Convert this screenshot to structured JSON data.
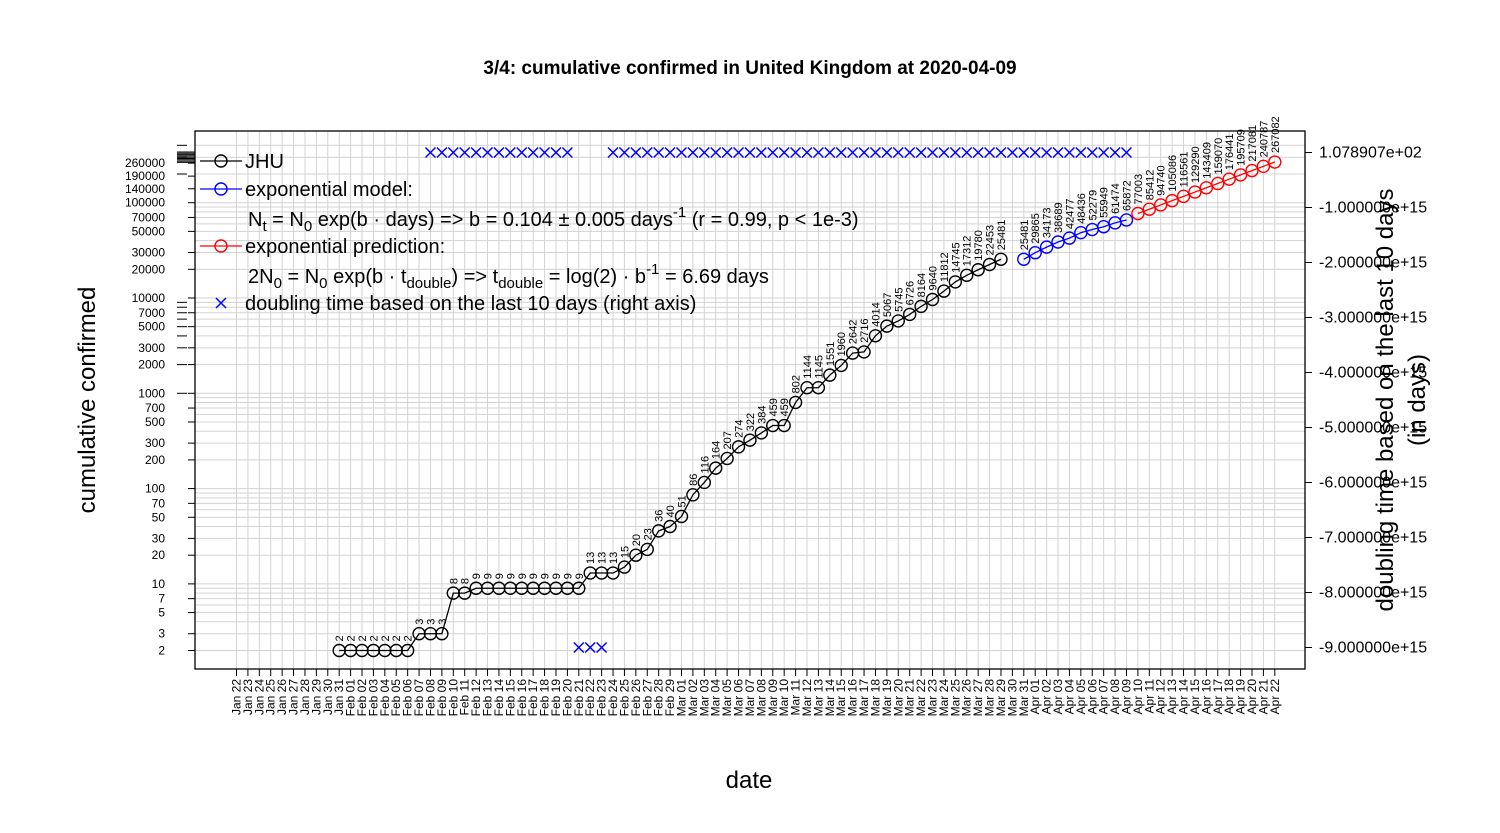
{
  "colors": {
    "observed": "#000000",
    "model": "#0000ff",
    "prediction": "#ff0000",
    "grid": "#d3d3d3"
  },
  "chart_data": {
    "type": "line",
    "title": "3/4: cumulative confirmed in United Kingdom at 2020-04-09",
    "xlabel": "date",
    "ylabel": "cumulative confirmed",
    "y2label": [
      "doubling time based on the last 10 days",
      "(in days)"
    ],
    "yscale": "log",
    "ylim": [
      1.6,
      400000
    ],
    "grid": true,
    "legend_position": "top-left",
    "x_dates": [
      "Jan 22",
      "Jan 23",
      "Jan 24",
      "Jan 25",
      "Jan 26",
      "Jan 27",
      "Jan 28",
      "Jan 29",
      "Jan 30",
      "Jan 31",
      "Feb 01",
      "Feb 02",
      "Feb 03",
      "Feb 04",
      "Feb 05",
      "Feb 06",
      "Feb 07",
      "Feb 08",
      "Feb 09",
      "Feb 10",
      "Feb 11",
      "Feb 12",
      "Feb 13",
      "Feb 14",
      "Feb 15",
      "Feb 16",
      "Feb 17",
      "Feb 18",
      "Feb 19",
      "Feb 20",
      "Feb 21",
      "Feb 22",
      "Feb 23",
      "Feb 24",
      "Feb 25",
      "Feb 26",
      "Feb 27",
      "Feb 28",
      "Feb 29",
      "Mar 01",
      "Mar 02",
      "Mar 03",
      "Mar 04",
      "Mar 05",
      "Mar 06",
      "Mar 07",
      "Mar 08",
      "Mar 09",
      "Mar 10",
      "Mar 11",
      "Mar 12",
      "Mar 13",
      "Mar 14",
      "Mar 15",
      "Mar 16",
      "Mar 17",
      "Mar 18",
      "Mar 19",
      "Mar 20",
      "Mar 21",
      "Mar 22",
      "Mar 23",
      "Mar 24",
      "Mar 25",
      "Mar 26",
      "Mar 27",
      "Mar 28",
      "Mar 29",
      "Mar 30",
      "Mar 31",
      "Apr 01",
      "Apr 02",
      "Apr 03",
      "Apr 04",
      "Apr 05",
      "Apr 06",
      "Apr 07",
      "Apr 08",
      "Apr 09",
      "Apr 10",
      "Apr 11",
      "Apr 12",
      "Apr 13",
      "Apr 14",
      "Apr 15",
      "Apr 16",
      "Apr 17",
      "Apr 18",
      "Apr 19",
      "Apr 20",
      "Apr 21",
      "Apr 22"
    ],
    "y_ticks": [
      2,
      3,
      5,
      7,
      10,
      20,
      30,
      50,
      70,
      100,
      200,
      300,
      500,
      700,
      1000,
      2000,
      3000,
      5000,
      7000,
      10000,
      20000,
      30000,
      50000,
      70000,
      100000,
      140000,
      190000,
      260000
    ],
    "y2_ticks": [
      "1.078907e+02",
      "-1.000000e+15",
      "-2.000000e+15",
      "-3.000000e+15",
      "-4.000000e+15",
      "-5.000000e+15",
      "-6.000000e+15",
      "-7.000000e+15",
      "-8.000000e+15",
      "-9.000000e+15"
    ],
    "y2_values": [
      107.8907,
      -1000000000000000.0,
      -2000000000000000.0,
      -3000000000000000.0,
      -4000000000000000.0,
      -5000000000000000.0,
      -6000000000000000.0,
      -7000000000000000.0,
      -8000000000000000.0,
      -9000000000000000.0
    ],
    "y2lim": [
      -9400000000000000.0,
      0.0
    ],
    "series": [
      {
        "name": "JHU",
        "style": "observed",
        "start_date": "Jan 31",
        "values": [
          2,
          2,
          2,
          2,
          2,
          2,
          2,
          3,
          3,
          3,
          8,
          8,
          9,
          9,
          9,
          9,
          9,
          9,
          9,
          9,
          9,
          9,
          13,
          13,
          13,
          15,
          20,
          23,
          36,
          40,
          51,
          86,
          116,
          164,
          207,
          274,
          322,
          384,
          459,
          459,
          802,
          1144,
          1145,
          1551,
          1960,
          2642,
          2716,
          4014,
          5067,
          5745,
          6726,
          8164,
          9640,
          11812,
          14745,
          17312,
          19780,
          22453,
          25481
        ]
      },
      {
        "name": "exponential model:",
        "style": "model",
        "start_date": "Mar 31",
        "values": [
          25481,
          29865,
          34173,
          38689,
          42477,
          48436,
          52279,
          55949,
          61474,
          65872
        ]
      },
      {
        "name": "exponential prediction:",
        "style": "prediction",
        "start_date": "Apr 10",
        "values": [
          77003,
          85412,
          94740,
          105086,
          116561,
          129290,
          143409,
          159070,
          176441,
          195709,
          217081,
          240787,
          267082
        ]
      },
      {
        "name": "doubling time based on the last  10  days (right axis)",
        "style": "doubling",
        "axis": "right",
        "points": [
          {
            "from": "Feb 08",
            "to": "Feb 20",
            "y2": 107.8907
          },
          {
            "from": "Feb 21",
            "to": "Feb 23",
            "y2": -9000000000000000.0
          },
          {
            "from": "Feb 24",
            "to": "Apr 09",
            "y2": 107.8907
          }
        ]
      }
    ],
    "legend": [
      {
        "label": "JHU",
        "style": "observed"
      },
      {
        "label": "exponential model:",
        "style": "model"
      },
      {
        "label": "exponential prediction:",
        "style": "prediction"
      },
      {
        "label": "doubling time based on the last  10  days (right axis)",
        "style": "doubling"
      }
    ],
    "formulas": {
      "model": "N_t = N_0 exp(b · days) => b = 0.104 ± 0.005 days^-1 (r = 0.99, p < 1e-3)",
      "prediction": "2N_0 = N_0 exp(b · t_double) => t_double = log(2) · b^-1 = 6.69 days"
    }
  }
}
